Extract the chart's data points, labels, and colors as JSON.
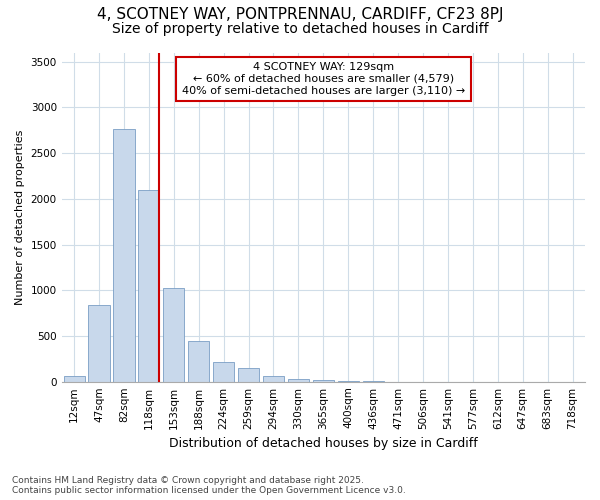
{
  "title_line1": "4, SCOTNEY WAY, PONTPRENNAU, CARDIFF, CF23 8PJ",
  "title_line2": "Size of property relative to detached houses in Cardiff",
  "xlabel": "Distribution of detached houses by size in Cardiff",
  "ylabel": "Number of detached properties",
  "categories": [
    "12sqm",
    "47sqm",
    "82sqm",
    "118sqm",
    "153sqm",
    "188sqm",
    "224sqm",
    "259sqm",
    "294sqm",
    "330sqm",
    "365sqm",
    "400sqm",
    "436sqm",
    "471sqm",
    "506sqm",
    "541sqm",
    "577sqm",
    "612sqm",
    "647sqm",
    "683sqm",
    "718sqm"
  ],
  "values": [
    60,
    840,
    2760,
    2100,
    1020,
    450,
    210,
    150,
    60,
    30,
    15,
    5,
    2,
    1,
    0,
    0,
    0,
    0,
    0,
    0,
    0
  ],
  "bar_color": "#c8d8eb",
  "bar_edge_color": "#7a9ec5",
  "red_line_x": 3.5,
  "annotation_text_line1": "4 SCOTNEY WAY: 129sqm",
  "annotation_text_line2": "← 60% of detached houses are smaller (4,579)",
  "annotation_text_line3": "40% of semi-detached houses are larger (3,110) →",
  "annotation_box_color": "#ffffff",
  "annotation_box_edge_color": "#cc0000",
  "red_line_color": "#cc0000",
  "ylim": [
    0,
    3600
  ],
  "yticks": [
    0,
    500,
    1000,
    1500,
    2000,
    2500,
    3000,
    3500
  ],
  "footer_line1": "Contains HM Land Registry data © Crown copyright and database right 2025.",
  "footer_line2": "Contains public sector information licensed under the Open Government Licence v3.0.",
  "background_color": "#ffffff",
  "plot_background_color": "#ffffff",
  "grid_color": "#d0dde8",
  "title1_fontsize": 11,
  "title2_fontsize": 10,
  "ylabel_fontsize": 8,
  "xlabel_fontsize": 9,
  "tick_fontsize": 7.5,
  "footer_fontsize": 6.5
}
